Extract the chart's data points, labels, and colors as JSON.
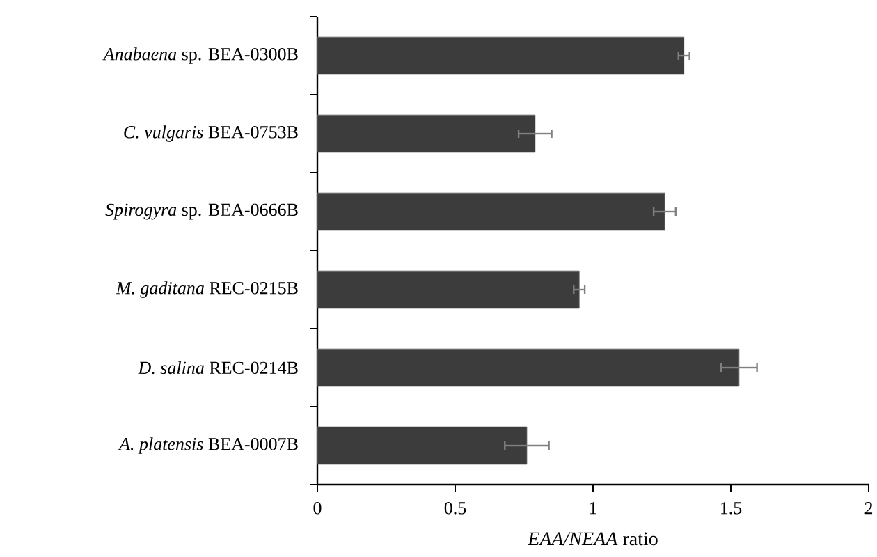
{
  "chart_data": {
    "type": "bar",
    "orientation": "horizontal",
    "categories": [
      "*Anabaena* sp. BEA-0300B",
      "*C. vulgaris* BEA-0753B",
      "*Spirogyra* sp. BEA-0666B",
      "*M. gaditana* REC-0215B",
      "*D. salina* REC-0214B",
      "*A. platensis* BEA-0007B"
    ],
    "values": [
      1.33,
      0.79,
      1.26,
      0.95,
      1.53,
      0.76
    ],
    "errors": [
      0.02,
      0.06,
      0.04,
      0.02,
      0.065,
      0.08
    ],
    "color": "#3c3c3c",
    "xlim": [
      0,
      2
    ],
    "xticks": [
      0,
      0.5,
      1,
      1.5,
      2
    ],
    "xlabel": "*EAA/NEAA* ratio"
  }
}
